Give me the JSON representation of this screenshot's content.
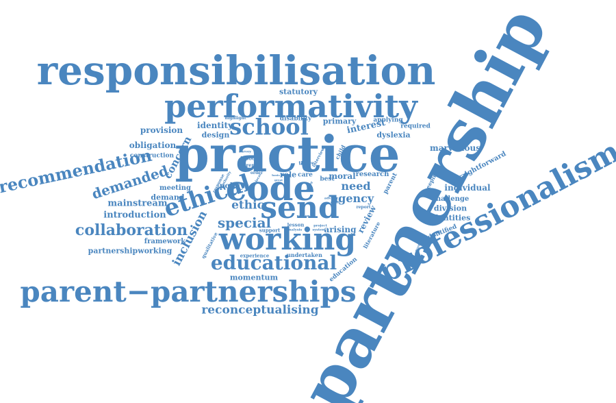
{
  "accent_color": "#4a86bf",
  "words": [
    {
      "id": "partnership",
      "text": "partnership"
    },
    {
      "id": "responsibilisation",
      "text": "responsibilisation"
    },
    {
      "id": "practice",
      "text": "practice"
    },
    {
      "id": "performativity",
      "text": "performativity"
    },
    {
      "id": "professionalism",
      "text": "professionalism"
    },
    {
      "id": "parent-partnerships",
      "text": "parent−partnerships"
    },
    {
      "id": "code",
      "text": "code"
    },
    {
      "id": "working",
      "text": "working"
    },
    {
      "id": "send",
      "text": "send"
    },
    {
      "id": "school",
      "text": "school"
    },
    {
      "id": "ethical",
      "text": "ethical"
    },
    {
      "id": "educational",
      "text": "educational"
    },
    {
      "id": "recommendation",
      "text": "recommendation"
    },
    {
      "id": "collaboration",
      "text": "collaboration"
    },
    {
      "id": "demanded",
      "text": "demanded"
    },
    {
      "id": "reconceptualising",
      "text": "reconceptualising"
    },
    {
      "id": "special",
      "text": "special"
    },
    {
      "id": "ethic",
      "text": "ethic"
    },
    {
      "id": "agency",
      "text": "agency"
    },
    {
      "id": "need",
      "text": "need"
    },
    {
      "id": "inclusion",
      "text": "inclusion"
    },
    {
      "id": "concern",
      "text": "concern"
    },
    {
      "id": "interest",
      "text": "interest"
    },
    {
      "id": "statutory",
      "text": "statutory"
    },
    {
      "id": "identity",
      "text": "identity"
    },
    {
      "id": "design",
      "text": "design"
    },
    {
      "id": "provision",
      "text": "provision"
    },
    {
      "id": "obligation",
      "text": "obligation"
    },
    {
      "id": "construction",
      "text": "construction"
    },
    {
      "id": "primary",
      "text": "primary"
    },
    {
      "id": "disability",
      "text": "disability"
    },
    {
      "id": "applying",
      "text": "applying"
    },
    {
      "id": "required",
      "text": "required"
    },
    {
      "id": "dyslexia",
      "text": "dyslexia"
    },
    {
      "id": "marvellous",
      "text": "marvellous"
    },
    {
      "id": "straightforward",
      "text": "straightforward"
    },
    {
      "id": "individual",
      "text": "individual"
    },
    {
      "id": "challenge",
      "text": "challenge"
    },
    {
      "id": "division",
      "text": "division"
    },
    {
      "id": "identities",
      "text": "identities"
    },
    {
      "id": "identified",
      "text": "identified"
    },
    {
      "id": "mainstream",
      "text": "mainstream"
    },
    {
      "id": "introduction",
      "text": "introduction"
    },
    {
      "id": "meeting",
      "text": "meeting"
    },
    {
      "id": "demand",
      "text": "demand"
    },
    {
      "id": "framework",
      "text": "framework"
    },
    {
      "id": "partnershipworking",
      "text": "partnershipworking"
    },
    {
      "id": "momentum",
      "text": "momentum"
    },
    {
      "id": "experience",
      "text": "experience"
    },
    {
      "id": "undertaken",
      "text": "undertaken"
    },
    {
      "id": "education",
      "text": "education"
    },
    {
      "id": "arising",
      "text": "arising"
    },
    {
      "id": "review",
      "text": "review"
    },
    {
      "id": "literature",
      "text": "literature"
    },
    {
      "id": "research",
      "text": "research"
    },
    {
      "id": "moral",
      "text": "moral"
    },
    {
      "id": "role",
      "text": "role"
    },
    {
      "id": "care",
      "text": "care"
    },
    {
      "id": "policy",
      "text": "policy"
    },
    {
      "id": "best",
      "text": "best"
    },
    {
      "id": "thrive",
      "text": "thrive"
    },
    {
      "id": "carer",
      "text": "carer"
    },
    {
      "id": "labour",
      "text": "labour"
    },
    {
      "id": "child",
      "text": "child"
    },
    {
      "id": "interview",
      "text": "interview"
    },
    {
      "id": "parent",
      "text": "parent"
    },
    {
      "id": "keeping",
      "text": "keeping"
    },
    {
      "id": "lesson",
      "text": "lesson"
    },
    {
      "id": "support",
      "text": "support"
    },
    {
      "id": "qualitative",
      "text": "qualitative"
    },
    {
      "id": "response",
      "text": "response"
    },
    {
      "id": "report",
      "text": "report"
    },
    {
      "id": "highlight",
      "text": "highlight"
    },
    {
      "id": "survey",
      "text": "survey"
    },
    {
      "id": "study",
      "text": "study"
    },
    {
      "id": "order",
      "text": "order"
    },
    {
      "id": "local",
      "text": "local"
    },
    {
      "id": "authority",
      "text": "authority"
    },
    {
      "id": "advisor",
      "text": "advisor"
    },
    {
      "id": "audit",
      "text": "audit"
    },
    {
      "id": "project",
      "text": "project"
    },
    {
      "id": "system",
      "text": "system"
    },
    {
      "id": "analysis",
      "text": "analysis"
    },
    {
      "id": "person",
      "text": "person"
    },
    {
      "id": "particular",
      "text": "particular"
    },
    {
      "id": "basis",
      "text": "basis"
    },
    {
      "id": "great",
      "text": "great"
    },
    {
      "id": "england",
      "text": "england"
    },
    {
      "id": "finding",
      "text": "finding"
    }
  ]
}
